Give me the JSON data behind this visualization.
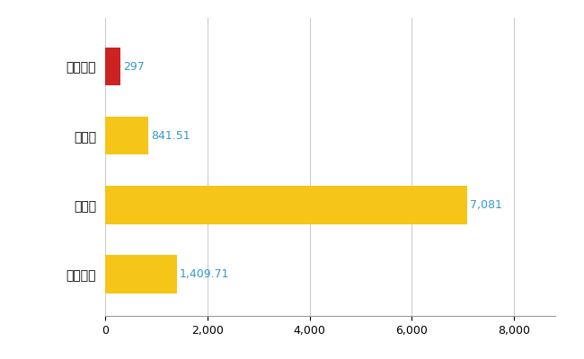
{
  "categories": [
    "今帰仁村",
    "県平均",
    "県最大",
    "全国平均"
  ],
  "values": [
    297,
    841.51,
    7081,
    1409.71
  ],
  "bar_colors": [
    "#cc2222",
    "#f5c518",
    "#f5c518",
    "#f5c518"
  ],
  "value_labels": [
    "297",
    "841.51",
    "7,081",
    "1,409.71"
  ],
  "xlim": [
    0,
    8800
  ],
  "xticks": [
    0,
    2000,
    4000,
    6000,
    8000
  ],
  "background_color": "#ffffff",
  "grid_color": "#cccccc",
  "label_color": "#3399cc",
  "bar_height": 0.55,
  "figsize": [
    6.5,
    4.0
  ],
  "dpi": 100
}
